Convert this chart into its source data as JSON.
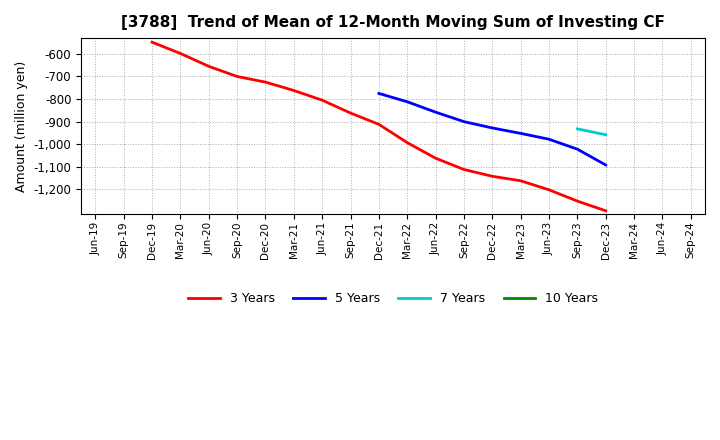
{
  "title": "[3788]  Trend of Mean of 12-Month Moving Sum of Investing CF",
  "ylabel": "Amount (million yen)",
  "background_color": "#ffffff",
  "plot_bg_color": "#ffffff",
  "ylim": [
    -1310,
    -530
  ],
  "yticks": [
    -1200,
    -1100,
    -1000,
    -900,
    -800,
    -700,
    -600
  ],
  "grid_color": "#999999",
  "series": {
    "3years": {
      "color": "#ff0000",
      "label": "3 Years",
      "x": [
        "Dec-19",
        "Mar-20",
        "Jun-20",
        "Sep-20",
        "Dec-20",
        "Mar-21",
        "Jun-21",
        "Sep-21",
        "Dec-21",
        "Mar-22",
        "Jun-22",
        "Sep-22",
        "Dec-22",
        "Mar-23",
        "Jun-23",
        "Sep-23",
        "Dec-23"
      ],
      "y": [
        -548,
        -598,
        -655,
        -700,
        -725,
        -762,
        -805,
        -862,
        -912,
        -993,
        -1062,
        -1112,
        -1142,
        -1162,
        -1202,
        -1252,
        -1295
      ]
    },
    "5years": {
      "color": "#0000ff",
      "label": "5 Years",
      "x": [
        "Dec-21",
        "Mar-22",
        "Jun-22",
        "Sep-22",
        "Dec-22",
        "Mar-23",
        "Jun-23",
        "Sep-23",
        "Dec-23"
      ],
      "y": [
        -775,
        -812,
        -858,
        -900,
        -928,
        -952,
        -978,
        -1022,
        -1092
      ]
    },
    "7years": {
      "color": "#00cccc",
      "label": "7 Years",
      "x": [
        "Sep-23",
        "Dec-23"
      ],
      "y": [
        -932,
        -958
      ]
    },
    "10years": {
      "color": "#008800",
      "label": "10 Years",
      "x": [],
      "y": []
    }
  },
  "x_labels": [
    "Jun-19",
    "Sep-19",
    "Dec-19",
    "Mar-20",
    "Jun-20",
    "Sep-20",
    "Dec-20",
    "Mar-21",
    "Jun-21",
    "Sep-21",
    "Dec-21",
    "Mar-22",
    "Jun-22",
    "Sep-22",
    "Dec-22",
    "Mar-23",
    "Jun-23",
    "Sep-23",
    "Dec-23",
    "Mar-24",
    "Jun-24",
    "Sep-24"
  ],
  "legend_items": [
    {
      "label": "3 Years",
      "color": "#ff0000"
    },
    {
      "label": "5 Years",
      "color": "#0000ff"
    },
    {
      "label": "7 Years",
      "color": "#00cccc"
    },
    {
      "label": "10 Years",
      "color": "#008800"
    }
  ]
}
